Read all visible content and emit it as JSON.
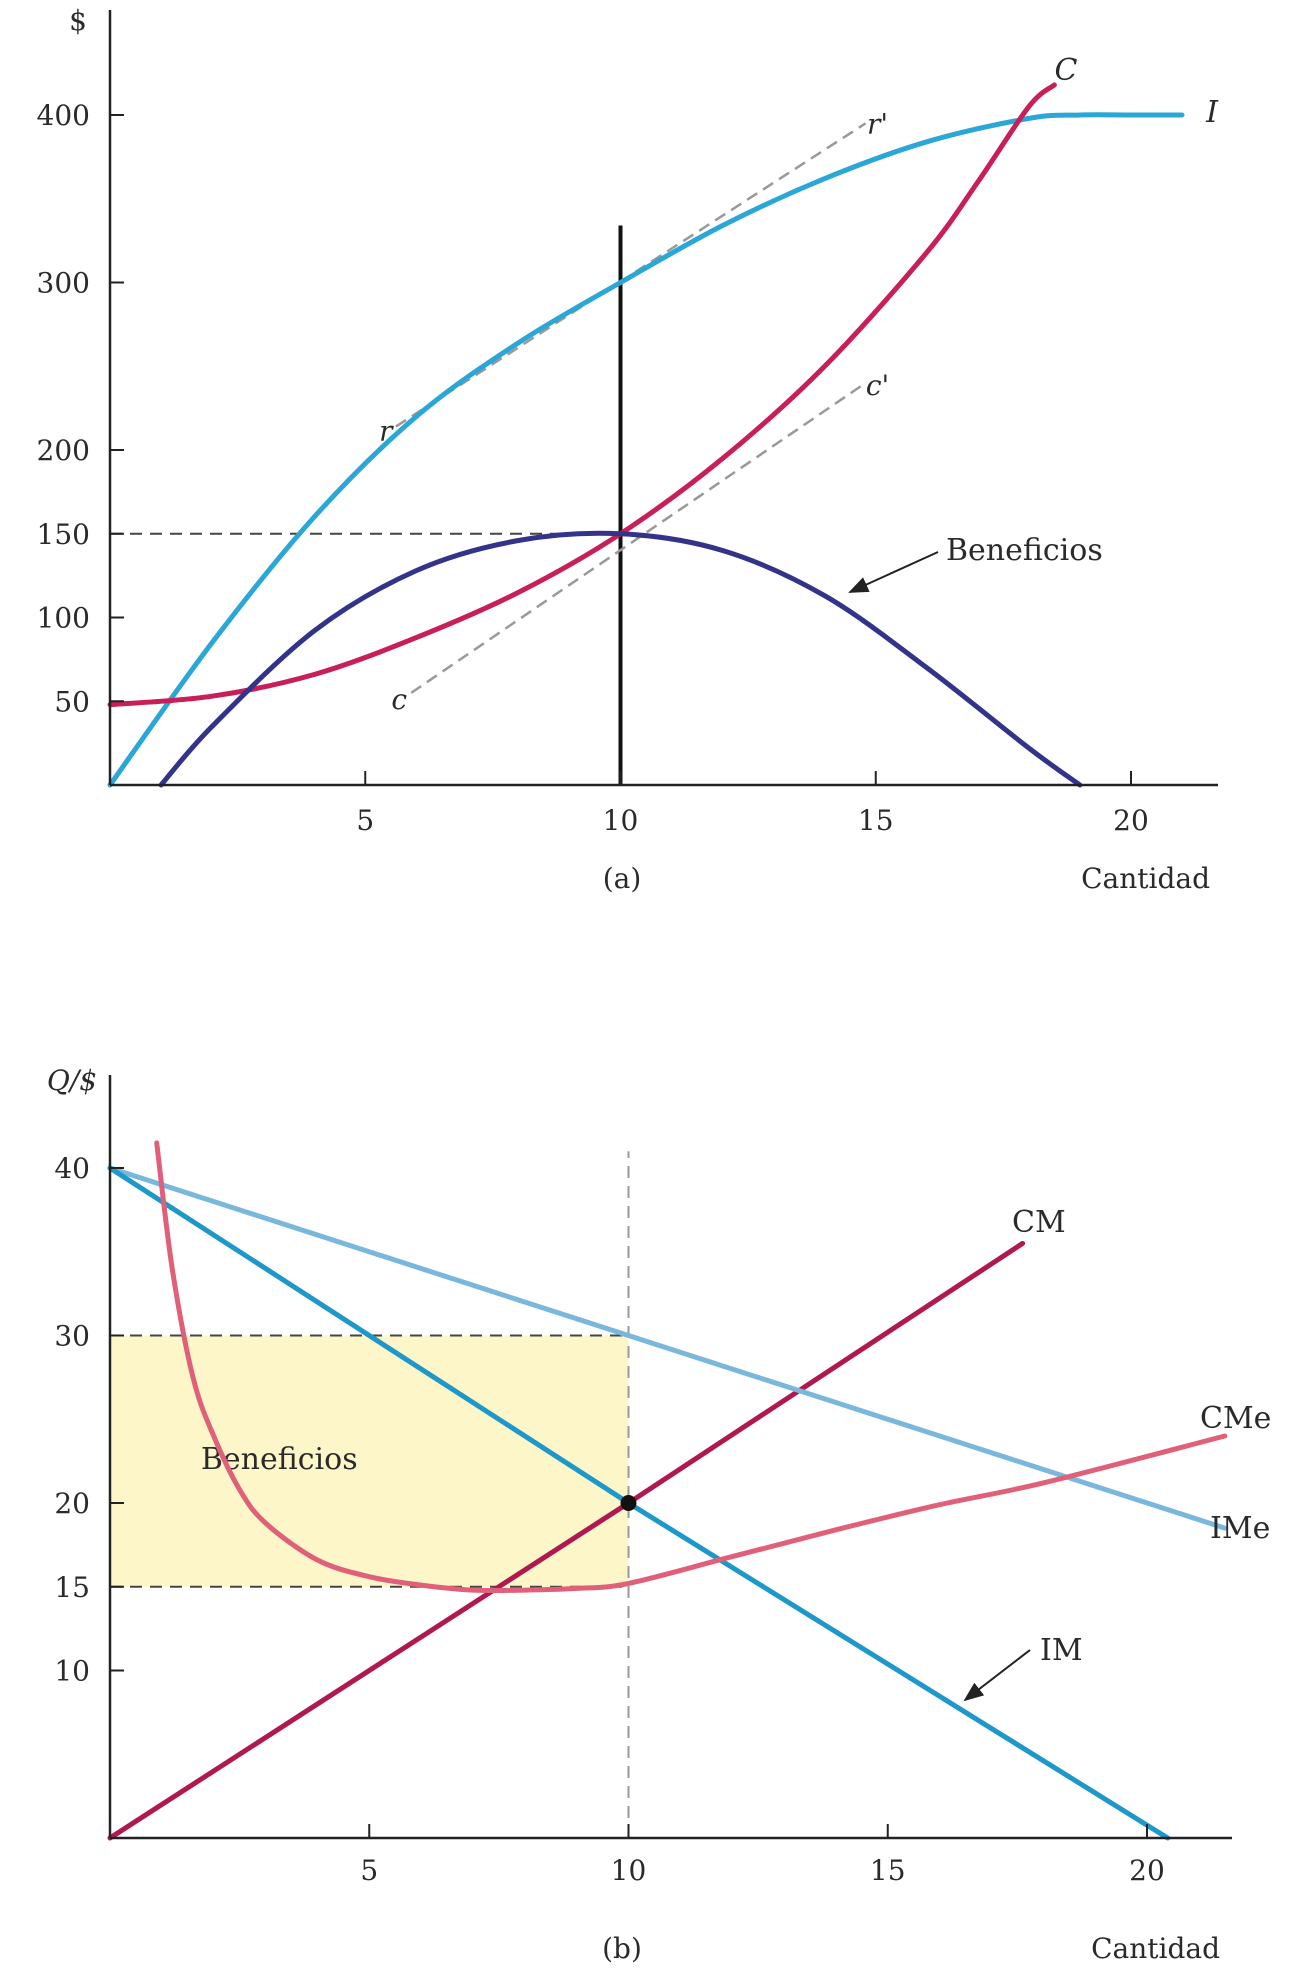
{
  "chart_data": [
    {
      "type": "line",
      "panel_label": "(a)",
      "xlabel": "Cantidad",
      "ylabel": "$",
      "xlim": [
        0,
        22
      ],
      "ylim": [
        0,
        430
      ],
      "xticks": [
        5,
        10,
        15,
        20
      ],
      "yticks": [
        50,
        100,
        150,
        200,
        300,
        400
      ],
      "series": [
        {
          "name": "I",
          "color": "#2aa7d6",
          "x": [
            0,
            2,
            4,
            6,
            8,
            10,
            12,
            14,
            16,
            18,
            19,
            20,
            21
          ],
          "y": [
            0,
            85,
            160,
            220,
            264,
            300,
            334,
            362,
            384,
            398,
            400,
            400,
            400
          ]
        },
        {
          "name": "C",
          "color": "#c81e5a",
          "x": [
            0,
            2,
            4,
            6,
            8,
            10,
            12,
            14,
            16,
            17,
            18,
            18.5
          ],
          "y": [
            48,
            53,
            66,
            88,
            115,
            150,
            195,
            250,
            318,
            360,
            405,
            418
          ]
        },
        {
          "name": "Beneficios",
          "color": "#33338a",
          "x": [
            1,
            2,
            4,
            6,
            8,
            10,
            12,
            14,
            16,
            18,
            19
          ],
          "y": [
            0,
            35,
            92,
            128,
            146,
            150,
            140,
            113,
            70,
            22,
            0
          ]
        }
      ],
      "annotations": [
        {
          "label": "r",
          "x": 5.6,
          "y": 214
        },
        {
          "label": "r'",
          "x": 14.8,
          "y": 395
        },
        {
          "label": "c",
          "x": 5.9,
          "y": 55
        },
        {
          "label": "c'",
          "x": 14.8,
          "y": 240
        }
      ],
      "reference_lines": [
        {
          "type": "vertical",
          "x": 10,
          "y_from": 0,
          "y_to": 334,
          "style": "solid"
        },
        {
          "type": "horizontal",
          "y": 150,
          "x_from": 0,
          "x_to": 10,
          "style": "dashed"
        }
      ]
    },
    {
      "type": "line",
      "panel_label": "(b)",
      "xlabel": "Cantidad",
      "ylabel": "Q/$",
      "xlim": [
        0,
        22
      ],
      "ylim": [
        0,
        45
      ],
      "xticks": [
        5,
        10,
        15,
        20
      ],
      "yticks": [
        10,
        15,
        20,
        30,
        40
      ],
      "series": [
        {
          "name": "CM",
          "color": "#b01850",
          "x": [
            0,
            10,
            17.6
          ],
          "y": [
            0,
            20,
            35.5
          ]
        },
        {
          "name": "IMe",
          "color": "#79b8dc",
          "x": [
            0,
            10,
            21.5
          ],
          "y": [
            40,
            30,
            18.5
          ]
        },
        {
          "name": "IM",
          "color": "#1d98c8",
          "x": [
            0,
            10,
            20.4
          ],
          "y": [
            40,
            20,
            0
          ]
        },
        {
          "name": "CMe",
          "color": "#e0607a",
          "x": [
            0.9,
            1.2,
            1.6,
            2,
            2.5,
            3,
            4,
            5,
            6,
            7,
            8,
            9,
            10,
            12,
            14,
            16,
            18,
            21.5
          ],
          "y": [
            41.5,
            34,
            27.5,
            24,
            20.8,
            18.8,
            16.6,
            15.6,
            15.1,
            14.8,
            14.8,
            14.9,
            15.2,
            16.8,
            18.4,
            19.9,
            21.2,
            24
          ]
        }
      ],
      "profit_area": {
        "label": "Beneficios",
        "x_from": 0,
        "x_to": 10,
        "y_from": 15,
        "y_to": 30,
        "color": "#fdf6c8"
      },
      "reference_lines": [
        {
          "type": "vertical",
          "x": 10,
          "y_from": 0,
          "y_to": 41,
          "style": "dashed"
        },
        {
          "type": "horizontal",
          "y": 30,
          "x_from": 0,
          "x_to": 10,
          "style": "dashed"
        },
        {
          "type": "horizontal",
          "y": 15,
          "x_from": 0,
          "x_to": 10,
          "style": "dashed"
        }
      ],
      "marker": {
        "x": 10,
        "y": 20
      }
    }
  ]
}
